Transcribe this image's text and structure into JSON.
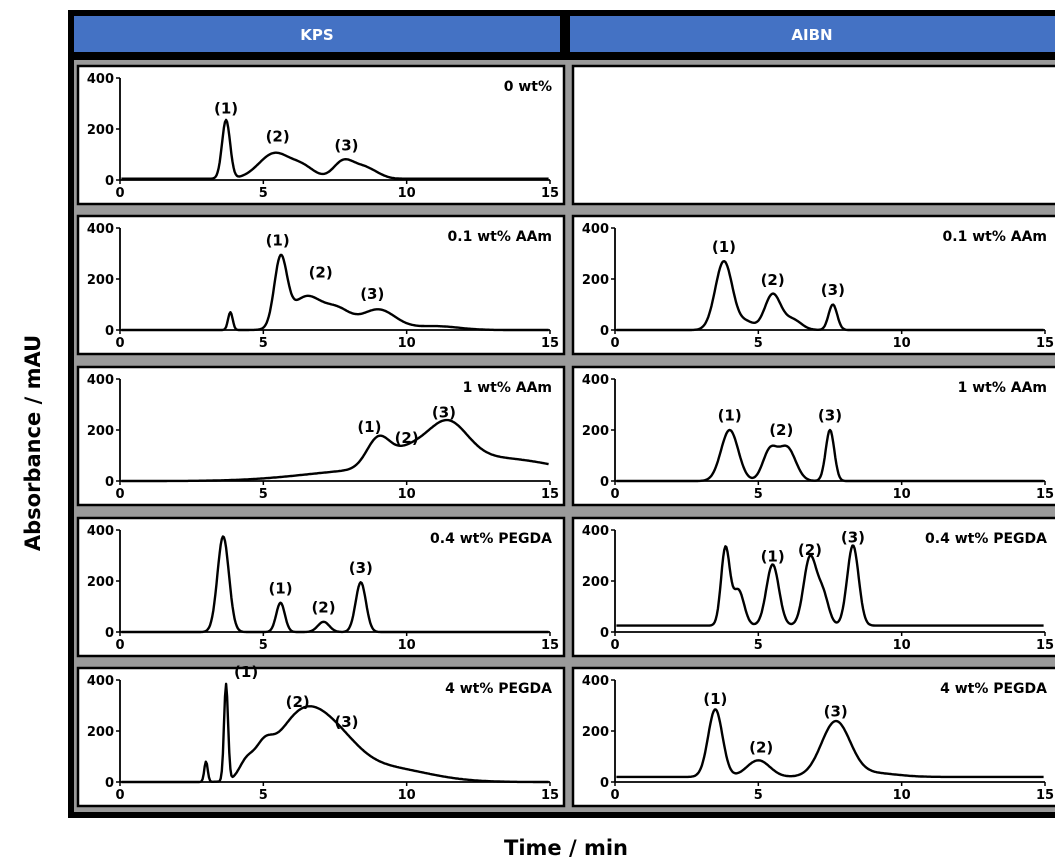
{
  "colors": {
    "header": "#4472C4",
    "frame": "#9a9a9a",
    "border": "#000000",
    "line": "#000000"
  },
  "ylabel": "Absorbance / mAU",
  "xlabel": "Time / min",
  "columns": [
    "KPS",
    "AIBN"
  ],
  "chart_data": {
    "type": "line",
    "xlim": [
      0,
      15
    ],
    "ylim": [
      0,
      400
    ],
    "xticks": [
      0,
      5,
      10,
      15
    ],
    "yticks": [
      0,
      200,
      400
    ],
    "panels": [
      {
        "column": "KPS",
        "row": 0,
        "condition": "0 wt%",
        "baseline": 5,
        "peaks": [
          [
            3.7,
            230,
            0.14
          ],
          [
            5.4,
            100,
            0.55
          ],
          [
            6.4,
            40,
            0.4
          ],
          [
            7.8,
            70,
            0.35
          ],
          [
            8.5,
            40,
            0.35
          ],
          [
            9.0,
            10,
            0.3
          ]
        ],
        "rises": [],
        "labels": [
          {
            "text": "(1)",
            "x": 3.7,
            "y": 230
          },
          {
            "text": "(2)",
            "x": 5.5,
            "y": 120
          },
          {
            "text": "(3)",
            "x": 7.9,
            "y": 85
          }
        ]
      },
      {
        "column": "AIBN",
        "row": 0,
        "condition": "",
        "empty": true,
        "peaks": [],
        "labels": []
      },
      {
        "column": "KPS",
        "row": 1,
        "condition": "0.1 wt% AAm",
        "baseline": 0,
        "peaks": [
          [
            3.85,
            70,
            0.08
          ],
          [
            5.6,
            260,
            0.22
          ],
          [
            6.5,
            130,
            0.55
          ],
          [
            7.6,
            70,
            0.45
          ],
          [
            9.0,
            80,
            0.6
          ],
          [
            11.0,
            15,
            0.8
          ]
        ],
        "rises": [
          [
            3.2,
            5
          ]
        ],
        "labels": [
          {
            "text": "(1)",
            "x": 5.5,
            "y": 300
          },
          {
            "text": "(2)",
            "x": 7.0,
            "y": 175
          },
          {
            "text": "(3)",
            "x": 8.8,
            "y": 90
          }
        ]
      },
      {
        "column": "AIBN",
        "row": 1,
        "condition": "0.1 wt% AAm",
        "baseline": 0,
        "peaks": [
          [
            3.8,
            270,
            0.3
          ],
          [
            4.6,
            30,
            0.25
          ],
          [
            5.5,
            140,
            0.28
          ],
          [
            6.2,
            40,
            0.3
          ],
          [
            7.6,
            100,
            0.15
          ]
        ],
        "rises": [],
        "labels": [
          {
            "text": "(1)",
            "x": 3.8,
            "y": 275
          },
          {
            "text": "(2)",
            "x": 5.5,
            "y": 145
          },
          {
            "text": "(3)",
            "x": 7.6,
            "y": 105
          }
        ]
      },
      {
        "column": "KPS",
        "row": 2,
        "condition": "1 wt% AAm",
        "baseline": 0,
        "peaks": [
          [
            9.0,
            110,
            0.4
          ],
          [
            10.0,
            55,
            0.6
          ],
          [
            11.4,
            155,
            0.7
          ],
          [
            13.0,
            90,
            2.5
          ],
          [
            8.0,
            30,
            2.0
          ]
        ],
        "rises": [],
        "labels": [
          {
            "text": "(1)",
            "x": 8.7,
            "y": 160
          },
          {
            "text": "(2)",
            "x": 10.0,
            "y": 118
          },
          {
            "text": "(3)",
            "x": 11.3,
            "y": 218
          }
        ]
      },
      {
        "column": "AIBN",
        "row": 2,
        "condition": "1 wt% AAm",
        "baseline": 0,
        "peaks": [
          [
            4.0,
            200,
            0.3
          ],
          [
            5.4,
            115,
            0.25
          ],
          [
            6.0,
            130,
            0.3
          ],
          [
            7.5,
            200,
            0.15
          ]
        ],
        "rises": [],
        "labels": [
          {
            "text": "(1)",
            "x": 4.0,
            "y": 205
          },
          {
            "text": "(2)",
            "x": 5.8,
            "y": 150
          },
          {
            "text": "(3)",
            "x": 7.5,
            "y": 205
          }
        ]
      },
      {
        "column": "KPS",
        "row": 3,
        "condition": "0.4 wt% PEGDA",
        "baseline": 0,
        "peaks": [
          [
            3.6,
            375,
            0.2
          ],
          [
            5.6,
            115,
            0.15
          ],
          [
            7.1,
            40,
            0.2
          ],
          [
            8.4,
            195,
            0.18
          ]
        ],
        "rises": [],
        "labels": [
          {
            "text": "(1)",
            "x": 5.6,
            "y": 120
          },
          {
            "text": "(2)",
            "x": 7.1,
            "y": 45
          },
          {
            "text": "(3)",
            "x": 8.4,
            "y": 200
          }
        ]
      },
      {
        "column": "AIBN",
        "row": 3,
        "condition": "0.4 wt% PEGDA",
        "baseline": 25,
        "peaks": [
          [
            3.85,
            300,
            0.15
          ],
          [
            4.3,
            140,
            0.2
          ],
          [
            5.5,
            240,
            0.22
          ],
          [
            6.8,
            265,
            0.22
          ],
          [
            7.25,
            120,
            0.2
          ],
          [
            8.3,
            315,
            0.2
          ]
        ],
        "rises": [],
        "labels": [
          {
            "text": "(1)",
            "x": 5.5,
            "y": 245
          },
          {
            "text": "(2)",
            "x": 6.8,
            "y": 270
          },
          {
            "text": "(3)",
            "x": 8.3,
            "y": 320
          }
        ]
      },
      {
        "column": "KPS",
        "row": 4,
        "condition": "4 wt% PEGDA",
        "baseline": 0,
        "peaks": [
          [
            3.0,
            80,
            0.06
          ],
          [
            3.7,
            380,
            0.07
          ],
          [
            4.4,
            60,
            0.25
          ],
          [
            5.0,
            80,
            0.3
          ],
          [
            6.3,
            245,
            0.9
          ],
          [
            7.6,
            100,
            0.8
          ],
          [
            9.0,
            60,
            1.6
          ]
        ],
        "rises": [],
        "labels": [
          {
            "text": "(1)",
            "x": 4.4,
            "y": 380
          },
          {
            "text": "(2)",
            "x": 6.2,
            "y": 262
          },
          {
            "text": "(3)",
            "x": 7.9,
            "y": 185
          }
        ]
      },
      {
        "column": "AIBN",
        "row": 4,
        "condition": "4 wt% PEGDA",
        "baseline": 20,
        "peaks": [
          [
            3.5,
            265,
            0.25
          ],
          [
            5.0,
            65,
            0.4
          ],
          [
            7.7,
            215,
            0.5
          ],
          [
            9.0,
            15,
            0.8
          ]
        ],
        "rises": [],
        "labels": [
          {
            "text": "(1)",
            "x": 3.5,
            "y": 275
          },
          {
            "text": "(2)",
            "x": 5.1,
            "y": 85
          },
          {
            "text": "(3)",
            "x": 7.7,
            "y": 225
          }
        ]
      }
    ]
  }
}
